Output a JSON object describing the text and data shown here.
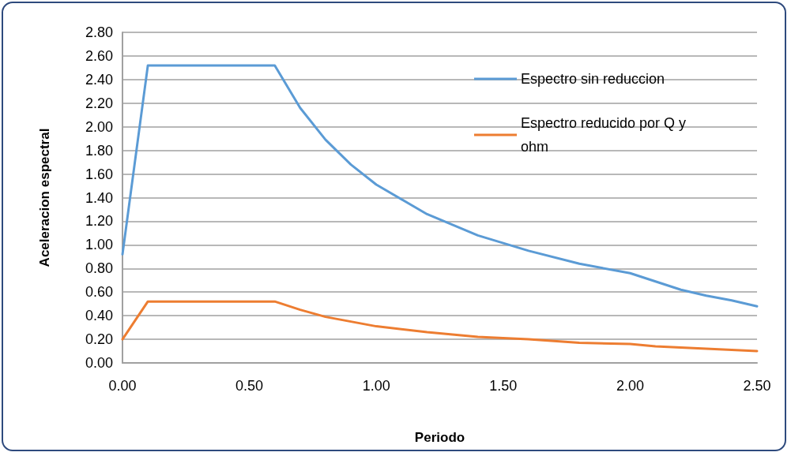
{
  "chart_data": {
    "type": "line",
    "xlabel": "Periodo",
    "ylabel": "Aceleracion espectral",
    "x": [
      0,
      0.1,
      0.6,
      0.7,
      0.8,
      0.9,
      1.0,
      1.2,
      1.4,
      1.6,
      1.8,
      2.0,
      2.1,
      2.2,
      2.3,
      2.4,
      2.5
    ],
    "series": [
      {
        "name": "Espectro sin reduccion",
        "color": "#5b9bd5",
        "values": [
          0.92,
          2.52,
          2.52,
          2.16,
          1.89,
          1.68,
          1.51,
          1.26,
          1.08,
          0.95,
          0.84,
          0.76,
          0.69,
          0.62,
          0.57,
          0.53,
          0.48
        ]
      },
      {
        "name": "Espectro reducido por Q y ohm",
        "color": "#ed7d31",
        "values": [
          0.2,
          0.52,
          0.52,
          0.45,
          0.39,
          0.35,
          0.31,
          0.26,
          0.22,
          0.2,
          0.17,
          0.16,
          0.14,
          0.13,
          0.12,
          0.11,
          0.1
        ]
      }
    ],
    "xlim": [
      0,
      2.5
    ],
    "xticks": [
      {
        "value": 0,
        "label": "0.00"
      },
      {
        "value": 0.5,
        "label": "0.50"
      },
      {
        "value": 1,
        "label": "1.00"
      },
      {
        "value": 1.5,
        "label": "1.50"
      },
      {
        "value": 2,
        "label": "2.00"
      },
      {
        "value": 2.5,
        "label": "2.50"
      }
    ],
    "ylim": [
      0,
      2.8
    ],
    "yticks": [
      {
        "value": 0,
        "label": "0.00"
      },
      {
        "value": 0.2,
        "label": "0.20"
      },
      {
        "value": 0.4,
        "label": "0.40"
      },
      {
        "value": 0.6,
        "label": "0.60"
      },
      {
        "value": 0.8,
        "label": "0.80"
      },
      {
        "value": 1,
        "label": "1.00"
      },
      {
        "value": 1.2,
        "label": "1.20"
      },
      {
        "value": 1.4,
        "label": "1.40"
      },
      {
        "value": 1.6,
        "label": "1.60"
      },
      {
        "value": 1.8,
        "label": "1.80"
      },
      {
        "value": 2,
        "label": "2.00"
      },
      {
        "value": 2.2,
        "label": "2.20"
      },
      {
        "value": 2.4,
        "label": "2.40"
      },
      {
        "value": 2.6,
        "label": "2.60"
      },
      {
        "value": 2.8,
        "label": "2.80"
      }
    ],
    "grid": "y",
    "legend": "top right",
    "marker": "none",
    "line_style": "solid"
  }
}
